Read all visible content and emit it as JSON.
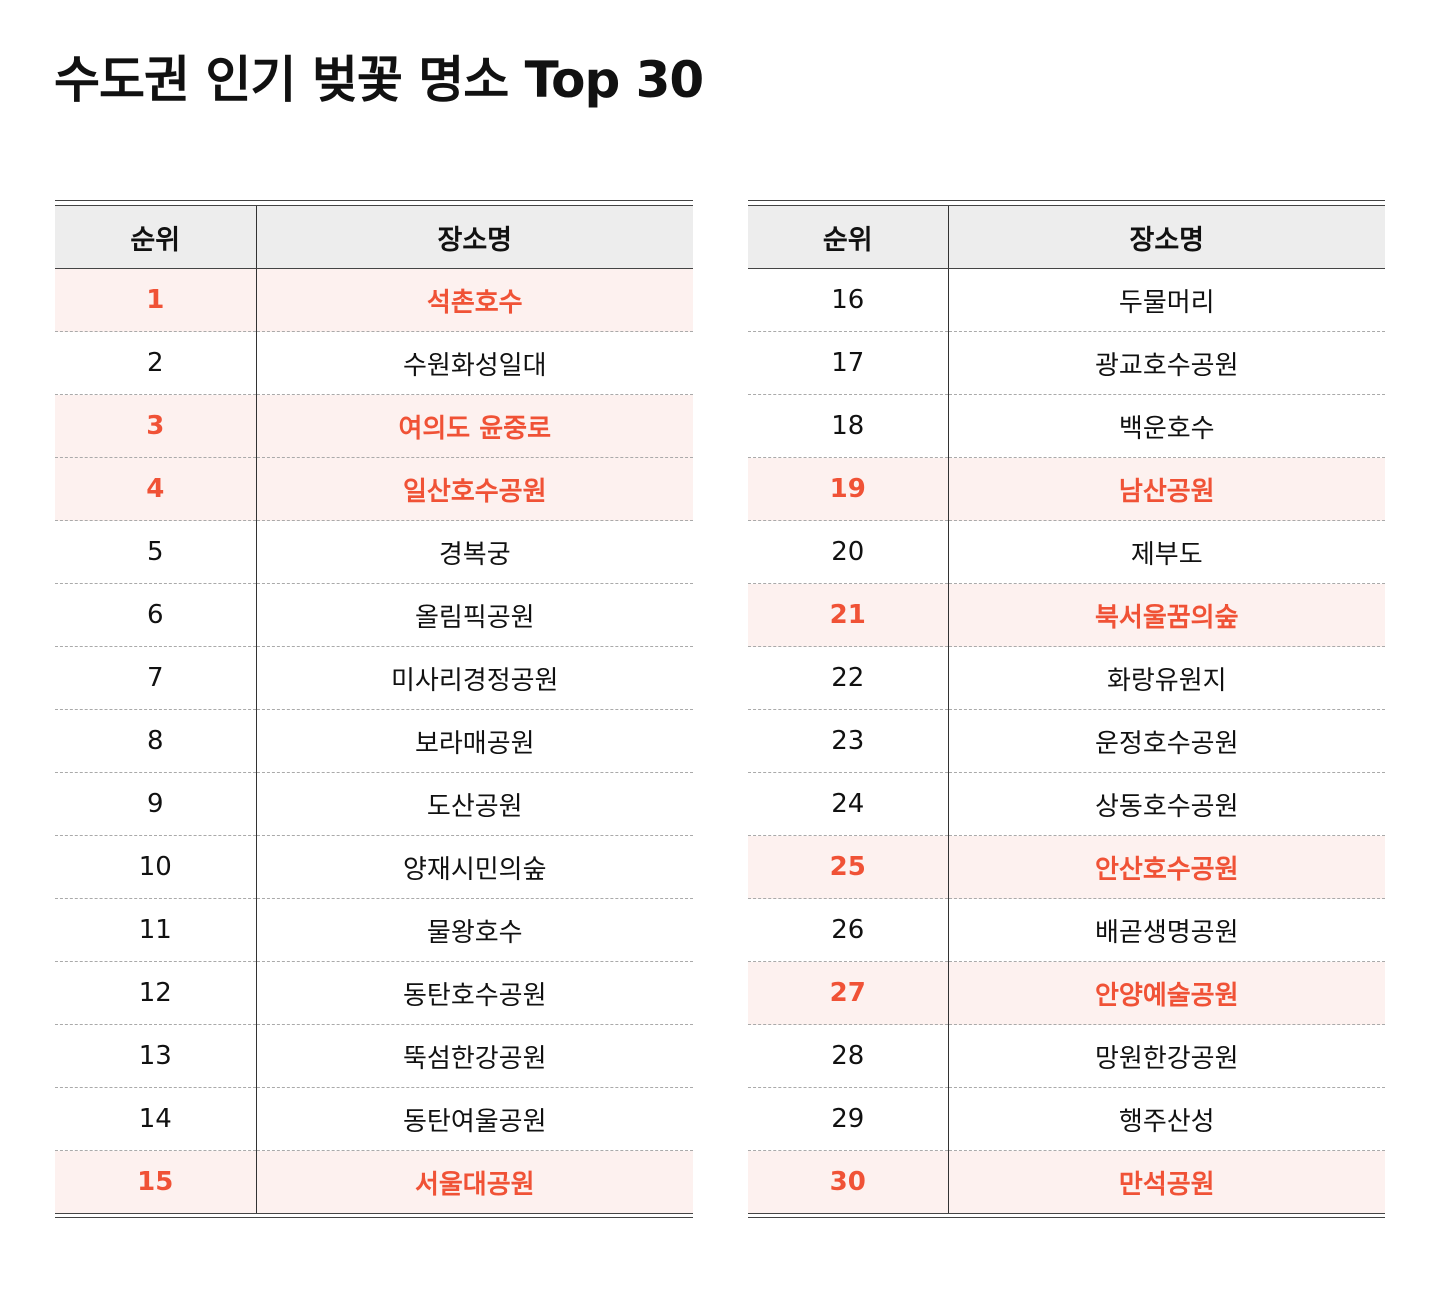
{
  "title": "수도권 인기 벚꽃 명소 Top 30",
  "colors": {
    "highlight_text": "#f05236",
    "highlight_bg": "#fdf1ef",
    "header_bg": "#ededed"
  },
  "headers": {
    "rank": "순위",
    "name": "장소명"
  },
  "tables": [
    {
      "rows": [
        {
          "rank": "1",
          "name": "석촌호수",
          "highlight": true
        },
        {
          "rank": "2",
          "name": "수원화성일대",
          "highlight": false
        },
        {
          "rank": "3",
          "name": "여의도 윤중로",
          "highlight": true
        },
        {
          "rank": "4",
          "name": "일산호수공원",
          "highlight": true
        },
        {
          "rank": "5",
          "name": "경복궁",
          "highlight": false
        },
        {
          "rank": "6",
          "name": "올림픽공원",
          "highlight": false
        },
        {
          "rank": "7",
          "name": "미사리경정공원",
          "highlight": false
        },
        {
          "rank": "8",
          "name": "보라매공원",
          "highlight": false
        },
        {
          "rank": "9",
          "name": "도산공원",
          "highlight": false
        },
        {
          "rank": "10",
          "name": "양재시민의숲",
          "highlight": false
        },
        {
          "rank": "11",
          "name": "물왕호수",
          "highlight": false
        },
        {
          "rank": "12",
          "name": "동탄호수공원",
          "highlight": false
        },
        {
          "rank": "13",
          "name": "뚝섬한강공원",
          "highlight": false
        },
        {
          "rank": "14",
          "name": "동탄여울공원",
          "highlight": false
        },
        {
          "rank": "15",
          "name": "서울대공원",
          "highlight": true
        }
      ]
    },
    {
      "rows": [
        {
          "rank": "16",
          "name": "두물머리",
          "highlight": false
        },
        {
          "rank": "17",
          "name": "광교호수공원",
          "highlight": false
        },
        {
          "rank": "18",
          "name": "백운호수",
          "highlight": false
        },
        {
          "rank": "19",
          "name": "남산공원",
          "highlight": true
        },
        {
          "rank": "20",
          "name": "제부도",
          "highlight": false
        },
        {
          "rank": "21",
          "name": "북서울꿈의숲",
          "highlight": true
        },
        {
          "rank": "22",
          "name": "화랑유원지",
          "highlight": false
        },
        {
          "rank": "23",
          "name": "운정호수공원",
          "highlight": false
        },
        {
          "rank": "24",
          "name": "상동호수공원",
          "highlight": false
        },
        {
          "rank": "25",
          "name": "안산호수공원",
          "highlight": true
        },
        {
          "rank": "26",
          "name": "배곧생명공원",
          "highlight": false
        },
        {
          "rank": "27",
          "name": "안양예술공원",
          "highlight": true
        },
        {
          "rank": "28",
          "name": "망원한강공원",
          "highlight": false
        },
        {
          "rank": "29",
          "name": "행주산성",
          "highlight": false
        },
        {
          "rank": "30",
          "name": "만석공원",
          "highlight": true
        }
      ]
    }
  ]
}
